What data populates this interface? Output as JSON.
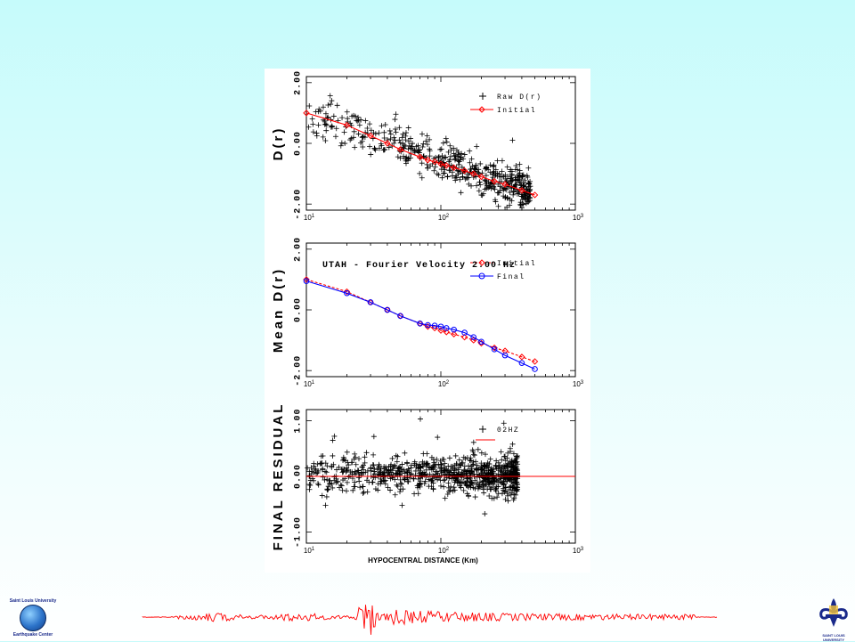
{
  "colors": {
    "raw": "#000000",
    "initial": "#ff0000",
    "final": "#0000ff",
    "waveform": "#ff0000"
  },
  "chart_data": [
    {
      "type": "scatter",
      "ylabel": "D(r)",
      "yticks": [
        "2.00",
        "0.00",
        "-2.00"
      ],
      "xticks": [
        {
          "base": "10",
          "exp": "1"
        },
        {
          "base": "10",
          "exp": "2"
        },
        {
          "base": "10",
          "exp": "3"
        }
      ],
      "xscale": "log",
      "xlim": [
        10,
        1000
      ],
      "ylim": [
        -2.2,
        2.2
      ],
      "legend_position": "top-right",
      "series": [
        {
          "name": "Raw D(r)",
          "marker": "plus",
          "generated_band": true,
          "x_range": [
            10,
            500
          ],
          "y_at_10": 0.95,
          "y_at_500": -1.65,
          "spread": 0.32,
          "n": 520
        },
        {
          "name": "Initial",
          "marker": "diamond",
          "x": [
            10,
            20,
            30,
            40,
            50,
            70,
            80,
            90,
            100,
            110,
            125,
            150,
            175,
            200,
            250,
            300,
            400,
            500
          ],
          "y": [
            1.0,
            0.6,
            0.25,
            0.0,
            -0.2,
            -0.45,
            -0.55,
            -0.6,
            -0.68,
            -0.73,
            -0.8,
            -0.9,
            -1.0,
            -1.1,
            -1.25,
            -1.35,
            -1.55,
            -1.7
          ]
        }
      ]
    },
    {
      "type": "line",
      "title": "UTAH - Fourier Velocity 2.00 Hz",
      "ylabel": "Mean D(r)",
      "yticks": [
        "2.00",
        "0.00",
        "-2.00"
      ],
      "xticks": [
        {
          "base": "10",
          "exp": "1"
        },
        {
          "base": "10",
          "exp": "2"
        },
        {
          "base": "10",
          "exp": "3"
        }
      ],
      "xscale": "log",
      "xlim": [
        10,
        1000
      ],
      "ylim": [
        -2.2,
        2.2
      ],
      "legend_position": "top-right",
      "series": [
        {
          "name": "Initial",
          "marker": "diamond",
          "dashed": true,
          "x": [
            10,
            20,
            30,
            40,
            50,
            70,
            80,
            90,
            100,
            110,
            125,
            150,
            175,
            200,
            250,
            300,
            400,
            500
          ],
          "y": [
            1.0,
            0.6,
            0.25,
            0.0,
            -0.2,
            -0.45,
            -0.55,
            -0.6,
            -0.68,
            -0.73,
            -0.8,
            -0.9,
            -1.0,
            -1.1,
            -1.25,
            -1.35,
            -1.55,
            -1.7
          ]
        },
        {
          "name": "Final",
          "marker": "circle",
          "dashed": false,
          "x": [
            10,
            20,
            30,
            40,
            50,
            70,
            80,
            90,
            100,
            110,
            125,
            150,
            175,
            200,
            250,
            300,
            400,
            500
          ],
          "y": [
            0.95,
            0.55,
            0.25,
            0.0,
            -0.2,
            -0.45,
            -0.5,
            -0.52,
            -0.55,
            -0.6,
            -0.65,
            -0.75,
            -0.9,
            -1.05,
            -1.3,
            -1.5,
            -1.75,
            -1.95
          ]
        }
      ]
    },
    {
      "type": "scatter",
      "ylabel": "FINAL RESIDUAL",
      "xlabel": "HYPOCENTRAL DISTANCE (Km)",
      "yticks": [
        "1.00",
        "0.00",
        "-1.00"
      ],
      "xticks": [
        {
          "base": "10",
          "exp": "1"
        },
        {
          "base": "10",
          "exp": "2"
        },
        {
          "base": "10",
          "exp": "3"
        }
      ],
      "xscale": "log",
      "xlim": [
        10,
        1000
      ],
      "ylim": [
        -1.2,
        1.2
      ],
      "legend_position": "top-right",
      "series": [
        {
          "name": "02HZ",
          "marker": "plus",
          "generated_band": true,
          "x_range": [
            10,
            400
          ],
          "y_at_10": 0.05,
          "y_at_500": 0.0,
          "spread": 0.17,
          "n": 900
        },
        {
          "name": "",
          "marker": "line",
          "x": [
            10,
            1000
          ],
          "y": [
            0.0,
            0.0
          ]
        }
      ]
    }
  ],
  "waveform": {
    "trace": "seismogram"
  },
  "logos": {
    "left": {
      "line1": "Saint Louis University",
      "line2": "Earthquake Center"
    },
    "right": {
      "line1": "SAINT LOUIS",
      "line2": "UNIVERSITY"
    }
  }
}
